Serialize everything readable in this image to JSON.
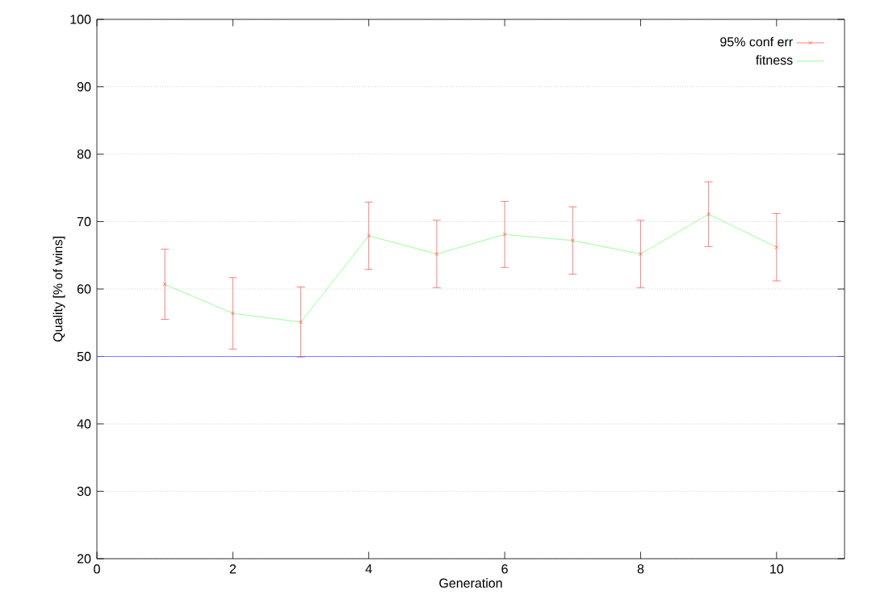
{
  "chart_data": {
    "type": "line",
    "xlabel": "Generation",
    "ylabel": "Quality [% of wins]",
    "x": [
      1,
      2,
      3,
      4,
      5,
      6,
      7,
      8,
      9,
      10
    ],
    "series": [
      {
        "name": "95% conf err",
        "type": "scatter",
        "marker": "cross",
        "color": "#ff6060",
        "values": [
          60.7,
          56.4,
          55.1,
          67.9,
          65.2,
          68.1,
          67.2,
          65.2,
          71.1,
          66.2
        ],
        "errors": [
          5.2,
          5.3,
          5.2,
          5.0,
          5.0,
          4.9,
          5.0,
          5.0,
          4.8,
          5.0
        ]
      },
      {
        "name": "fitness",
        "color": "#80ff80",
        "values": [
          60.7,
          56.4,
          55.1,
          67.9,
          65.2,
          68.1,
          67.2,
          65.2,
          71.1,
          66.2
        ]
      }
    ],
    "xlim": [
      0,
      11
    ],
    "xticks": [
      0,
      2,
      4,
      6,
      8,
      10
    ],
    "ylim": [
      20,
      100
    ],
    "yticks": [
      20,
      30,
      40,
      50,
      60,
      70,
      80,
      90,
      100
    ],
    "ref_lines": [
      {
        "axis": "y",
        "value": 50,
        "color": "#6060ff"
      }
    ],
    "grid": "y",
    "legend": "top right",
    "line_style": "solid"
  }
}
